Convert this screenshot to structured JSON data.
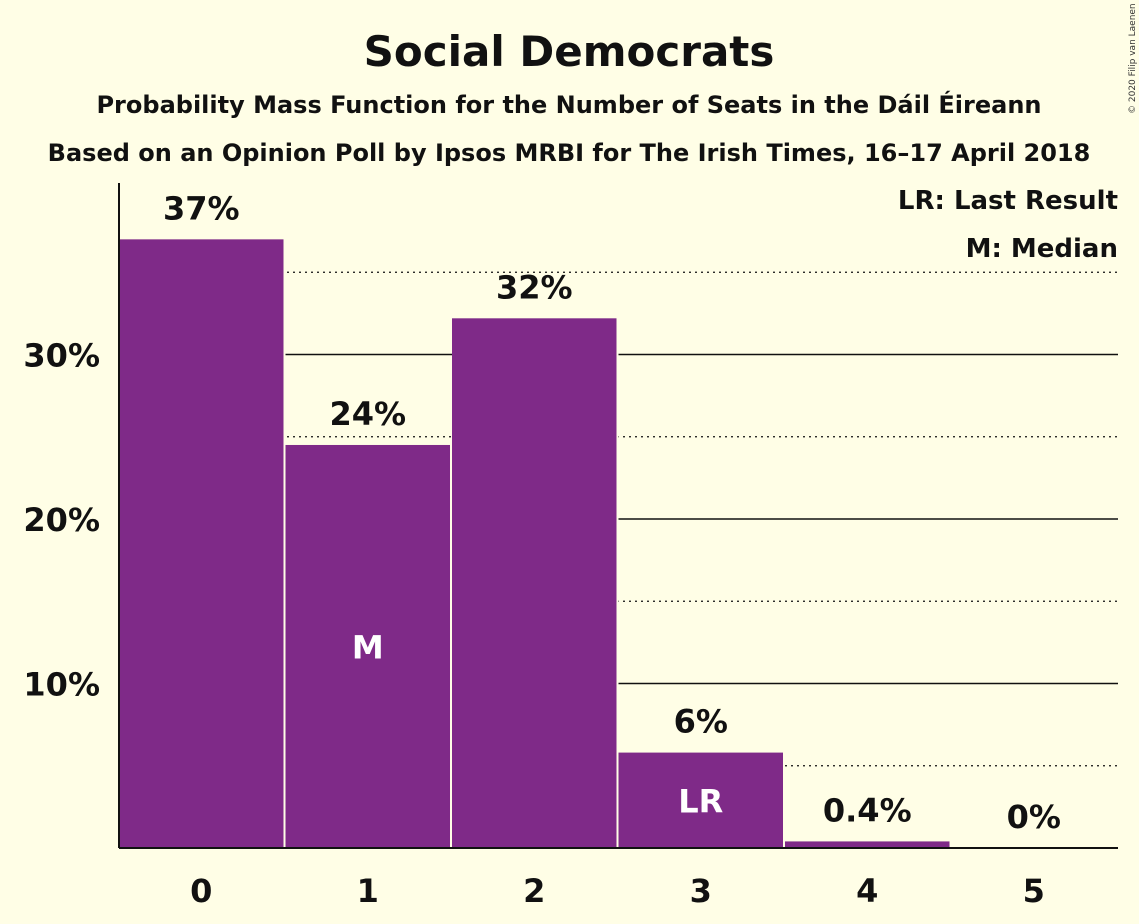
{
  "title": "Social Democrats",
  "subtitle1": "Probability Mass Function for the Number of Seats in the Dáil Éireann",
  "subtitle2": "Based on an Opinion Poll by Ipsos MRBI for The Irish Times, 16–17 April 2018",
  "copyright": "© 2020 Filip van Laenen",
  "legend": {
    "last_result": "LR: Last Result",
    "median": "M: Median"
  },
  "colors": {
    "background": "#FFFEE6",
    "bar": "#7F2A88",
    "text": "#111111",
    "marker_text": "#FFFFFF"
  },
  "chart_data": {
    "type": "bar",
    "categories": [
      "0",
      "1",
      "2",
      "3",
      "4",
      "5"
    ],
    "values": [
      37,
      24.5,
      32.2,
      5.8,
      0.4,
      0
    ],
    "data_labels": [
      "37%",
      "24%",
      "32%",
      "6%",
      "0.4%",
      "0%"
    ],
    "markers": [
      {
        "category": "1",
        "label": "M"
      },
      {
        "category": "3",
        "label": "LR"
      }
    ],
    "yticks": [
      {
        "value": 10,
        "label": "10%"
      },
      {
        "value": 20,
        "label": "20%"
      },
      {
        "value": 30,
        "label": "30%"
      }
    ],
    "minor_gridlines": [
      5,
      15,
      25,
      35
    ],
    "ylim": [
      0,
      40
    ],
    "xlabel": "",
    "ylabel": ""
  }
}
